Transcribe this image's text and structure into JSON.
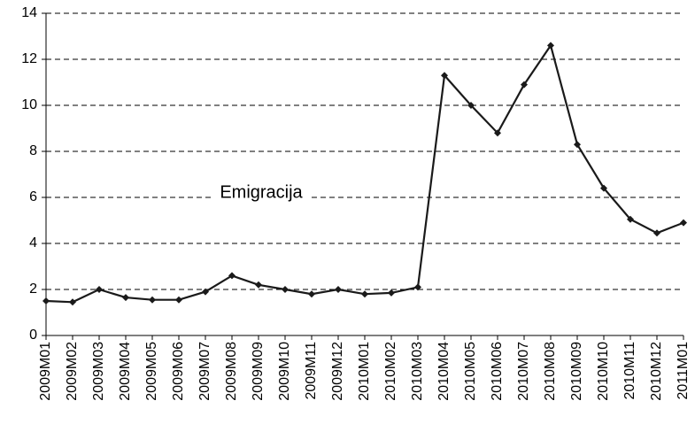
{
  "chart_data": {
    "type": "line",
    "categories": [
      "2009M01",
      "2009M02",
      "2009M03",
      "2009M04",
      "2009M05",
      "2009M06",
      "2009M07",
      "2009M08",
      "2009M09",
      "2009M10",
      "2009M11",
      "2009M12",
      "2010M01",
      "2010M02",
      "2010M03",
      "2010M04",
      "2010M05",
      "2010M06",
      "2010M07",
      "2010M08",
      "2010M09",
      "2010M10",
      "2010M11",
      "2010M12",
      "2011M01"
    ],
    "series": [
      {
        "name": "Emigracija",
        "color": "#1a1a1a",
        "values": [
          1.5,
          1.45,
          2.0,
          1.65,
          1.55,
          1.55,
          1.9,
          2.6,
          2.2,
          2.0,
          1.8,
          2.0,
          1.8,
          1.85,
          2.1,
          11.3,
          10.0,
          8.8,
          10.9,
          12.6,
          8.3,
          6.4,
          5.05,
          4.45,
          4.9
        ]
      }
    ],
    "annotation": "Emigracija",
    "ylim": [
      0,
      14
    ],
    "yticks": [
      0,
      2,
      4,
      6,
      8,
      10,
      12,
      14
    ],
    "grid": true
  }
}
